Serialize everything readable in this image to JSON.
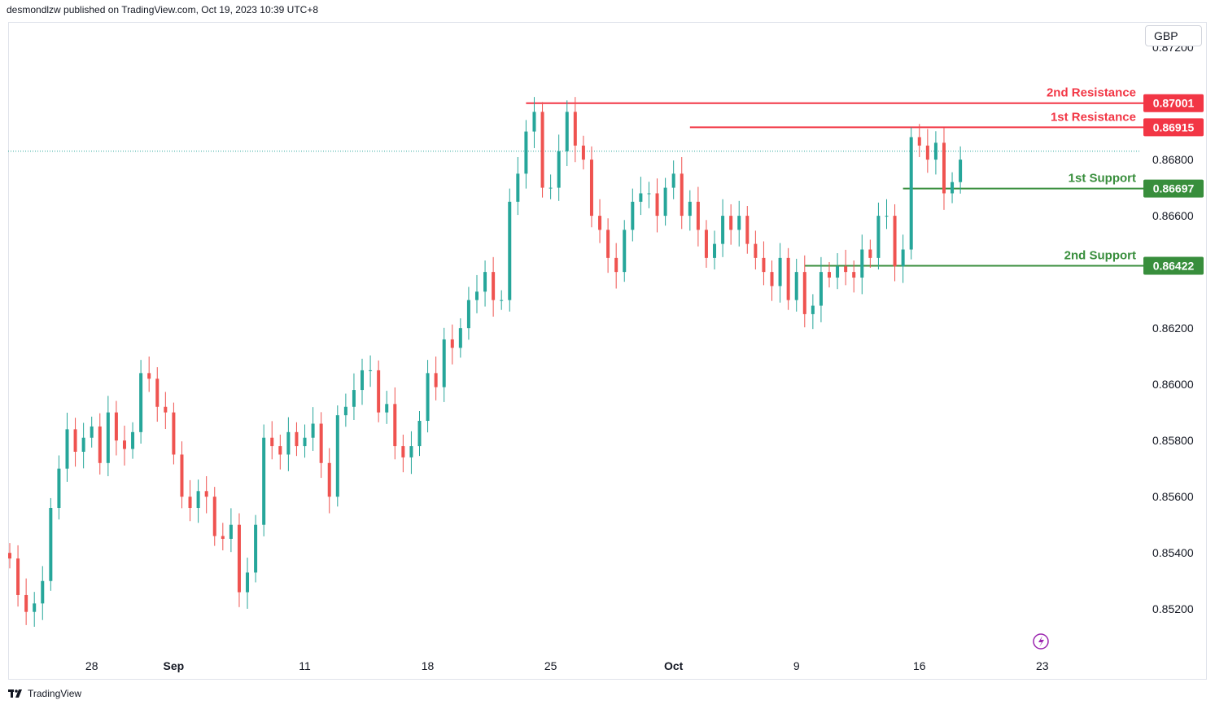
{
  "header": {
    "published": "desmondlzw published on TradingView.com, Oct 19, 2023 10:39 UTC+8"
  },
  "currency": "GBP",
  "footer": {
    "brand": "TradingView"
  },
  "colors": {
    "up": "#26a69a",
    "down": "#ef5350",
    "resistance": "#f23645",
    "support": "#388e3c"
  },
  "chart_data": {
    "type": "candlestick",
    "y_ticks": [
      "0.87200",
      "0.86800",
      "0.86600",
      "0.86200",
      "0.86000",
      "0.85800",
      "0.85600",
      "0.85400",
      "0.85200"
    ],
    "ylim": [
      0.8505,
      0.8729
    ],
    "x_ticks": [
      {
        "label": "28",
        "bar": 10,
        "bold": false
      },
      {
        "label": "Sep",
        "bar": 20,
        "bold": true
      },
      {
        "label": "11",
        "bar": 36,
        "bold": false
      },
      {
        "label": "18",
        "bar": 51,
        "bold": false
      },
      {
        "label": "25",
        "bar": 66,
        "bold": false
      },
      {
        "label": "Oct",
        "bar": 81,
        "bold": true
      },
      {
        "label": "9",
        "bar": 96,
        "bold": false
      },
      {
        "label": "16",
        "bar": 111,
        "bold": false
      },
      {
        "label": "23",
        "bar": 126,
        "bold": false
      }
    ],
    "last_price": 0.8683,
    "levels": [
      {
        "name": "2nd Resistance",
        "value": "0.87001",
        "price": 0.87001,
        "kind": "resistance",
        "start_bar": 63
      },
      {
        "name": "1st Resistance",
        "value": "0.86915",
        "price": 0.86915,
        "kind": "resistance",
        "start_bar": 83
      },
      {
        "name": "1st Support",
        "value": "0.86697",
        "price": 0.86697,
        "kind": "support",
        "start_bar": 109
      },
      {
        "name": "2nd Support",
        "value": "0.86422",
        "price": 0.86422,
        "kind": "support",
        "start_bar": 97
      }
    ],
    "closes": [
      0.8538,
      0.8525,
      0.8519,
      0.8522,
      0.853,
      0.8556,
      0.857,
      0.8584,
      0.8576,
      0.8581,
      0.8585,
      0.8572,
      0.859,
      0.858,
      0.8577,
      0.8583,
      0.8604,
      0.8602,
      0.8592,
      0.859,
      0.8575,
      0.856,
      0.8556,
      0.8562,
      0.856,
      0.8546,
      0.8545,
      0.855,
      0.8526,
      0.8533,
      0.855,
      0.8581,
      0.8578,
      0.8575,
      0.8583,
      0.8578,
      0.8581,
      0.8586,
      0.8572,
      0.856,
      0.8589,
      0.8592,
      0.8598,
      0.8605,
      0.8605,
      0.859,
      0.8593,
      0.8578,
      0.8574,
      0.8578,
      0.8587,
      0.8604,
      0.8599,
      0.8616,
      0.8613,
      0.862,
      0.863,
      0.8633,
      0.864,
      0.863,
      0.863,
      0.8665,
      0.8675,
      0.869,
      0.8697,
      0.867,
      0.867,
      0.8683,
      0.8697,
      0.8685,
      0.868,
      0.866,
      0.8655,
      0.8645,
      0.864,
      0.8655,
      0.8665,
      0.8668,
      0.8668,
      0.866,
      0.867,
      0.8675,
      0.866,
      0.8665,
      0.8655,
      0.8645,
      0.865,
      0.866,
      0.8655,
      0.866,
      0.865,
      0.8645,
      0.864,
      0.8635,
      0.8645,
      0.863,
      0.864,
      0.8625,
      0.8628,
      0.864,
      0.8638,
      0.8642,
      0.864,
      0.8638,
      0.8648,
      0.8645,
      0.866,
      0.866,
      0.8642,
      0.8648,
      0.8688,
      0.8685,
      0.868,
      0.8686,
      0.8668,
      0.8672,
      0.868
    ]
  }
}
